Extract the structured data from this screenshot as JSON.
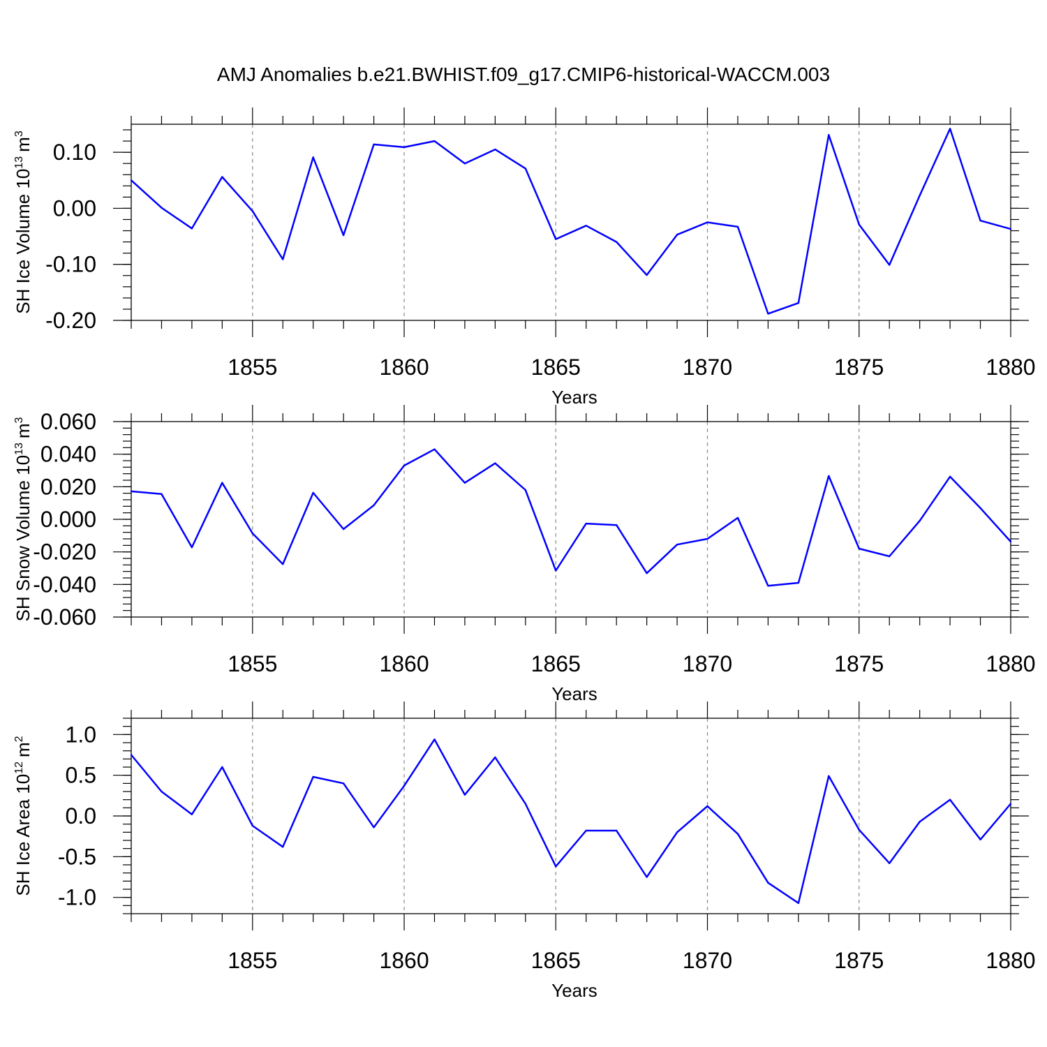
{
  "title": "AMJ Anomalies b.e21.BWHIST.f09_g17.CMIP6-historical-WACCM.003",
  "line_color": "#0000ff",
  "chart_data": [
    {
      "type": "line",
      "ylabel_main": "SH Ice Volume 10",
      "ylabel_sup": "13",
      "ylabel_unit": "m",
      "ylabel_unit_sup": "3",
      "xlabel": "Years",
      "xlim": [
        1851,
        1880
      ],
      "ylim": [
        -0.2,
        0.15
      ],
      "y_ticks": [
        -0.2,
        -0.1,
        0.0,
        0.1
      ],
      "y_tick_labels": [
        "-0.20",
        "-0.10",
        "0.00",
        "0.10"
      ],
      "y_minor_step": 0.02,
      "x_ticks": [
        1855,
        1860,
        1865,
        1870,
        1875,
        1880
      ],
      "x_tick_labels": [
        "1855",
        "1860",
        "1865",
        "1870",
        "1875",
        "1880"
      ],
      "grid": "dashed vertical at major x ticks",
      "x": [
        1851,
        1852,
        1853,
        1854,
        1855,
        1856,
        1857,
        1858,
        1859,
        1860,
        1861,
        1862,
        1863,
        1864,
        1865,
        1866,
        1867,
        1868,
        1869,
        1870,
        1871,
        1872,
        1873,
        1874,
        1875,
        1876,
        1877,
        1878,
        1879,
        1880
      ],
      "values": [
        0.05,
        0.001,
        -0.036,
        0.056,
        -0.005,
        -0.091,
        0.091,
        -0.048,
        0.114,
        0.109,
        0.12,
        0.08,
        0.105,
        0.071,
        -0.055,
        -0.031,
        -0.06,
        -0.119,
        -0.047,
        -0.025,
        -0.033,
        -0.188,
        -0.169,
        0.131,
        -0.029,
        -0.101,
        0.023,
        0.142,
        -0.022,
        -0.037
      ]
    },
    {
      "type": "line",
      "ylabel_main": "SH Snow Volume 10",
      "ylabel_sup": "13",
      "ylabel_unit": "m",
      "ylabel_unit_sup": "3",
      "xlabel": "Years",
      "xlim": [
        1851,
        1880
      ],
      "ylim": [
        -0.06,
        0.06
      ],
      "y_ticks": [
        -0.06,
        -0.04,
        -0.02,
        0.0,
        0.02,
        0.04,
        0.06
      ],
      "y_tick_labels": [
        "-0.060",
        "-0.040",
        "-0.020",
        "0.000",
        "0.020",
        "0.040",
        "0.060"
      ],
      "y_minor_step": 0.004,
      "x_ticks": [
        1855,
        1860,
        1865,
        1870,
        1875,
        1880
      ],
      "x_tick_labels": [
        "1855",
        "1860",
        "1865",
        "1870",
        "1875",
        "1880"
      ],
      "grid": "dashed vertical at major x ticks",
      "x": [
        1851,
        1852,
        1853,
        1854,
        1855,
        1856,
        1857,
        1858,
        1859,
        1860,
        1861,
        1862,
        1863,
        1864,
        1865,
        1866,
        1867,
        1868,
        1869,
        1870,
        1871,
        1872,
        1873,
        1874,
        1875,
        1876,
        1877,
        1878,
        1879,
        1880
      ],
      "values": [
        0.0172,
        0.0155,
        -0.0172,
        0.0224,
        -0.0086,
        -0.0275,
        0.0163,
        -0.006,
        0.0086,
        0.033,
        0.043,
        0.0224,
        0.0344,
        0.018,
        -0.0315,
        -0.0026,
        -0.0035,
        -0.0331,
        -0.0155,
        -0.012,
        0.0009,
        -0.0408,
        -0.039,
        0.0266,
        -0.018,
        -0.0227,
        -0.0009,
        0.0262,
        0.0069,
        -0.0137
      ]
    },
    {
      "type": "line",
      "ylabel_main": "SH Ice Area 10",
      "ylabel_sup": "12",
      "ylabel_unit": "m",
      "ylabel_unit_sup": "2",
      "xlabel": "Years",
      "xlim": [
        1851,
        1880
      ],
      "ylim": [
        -1.2,
        1.2
      ],
      "y_ticks": [
        -1.0,
        -0.5,
        0.0,
        0.5,
        1.0
      ],
      "y_tick_labels": [
        "-1.0",
        "-0.5",
        "0.0",
        "0.5",
        "1.0"
      ],
      "y_minor_step": 0.1,
      "x_ticks": [
        1855,
        1860,
        1865,
        1870,
        1875,
        1880
      ],
      "x_tick_labels": [
        "1855",
        "1860",
        "1865",
        "1870",
        "1875",
        "1880"
      ],
      "grid": "dashed vertical at major x ticks",
      "x": [
        1851,
        1852,
        1853,
        1854,
        1855,
        1856,
        1857,
        1858,
        1859,
        1860,
        1861,
        1862,
        1863,
        1864,
        1865,
        1866,
        1867,
        1868,
        1869,
        1870,
        1871,
        1872,
        1873,
        1874,
        1875,
        1876,
        1877,
        1878,
        1879,
        1880
      ],
      "values": [
        0.75,
        0.3,
        0.02,
        0.6,
        -0.12,
        -0.38,
        0.48,
        0.4,
        -0.14,
        0.37,
        0.94,
        0.26,
        0.72,
        0.15,
        -0.62,
        -0.18,
        -0.18,
        -0.75,
        -0.2,
        0.12,
        -0.22,
        -0.82,
        -1.07,
        0.49,
        -0.17,
        -0.58,
        -0.07,
        0.2,
        -0.29,
        0.15
      ]
    }
  ]
}
